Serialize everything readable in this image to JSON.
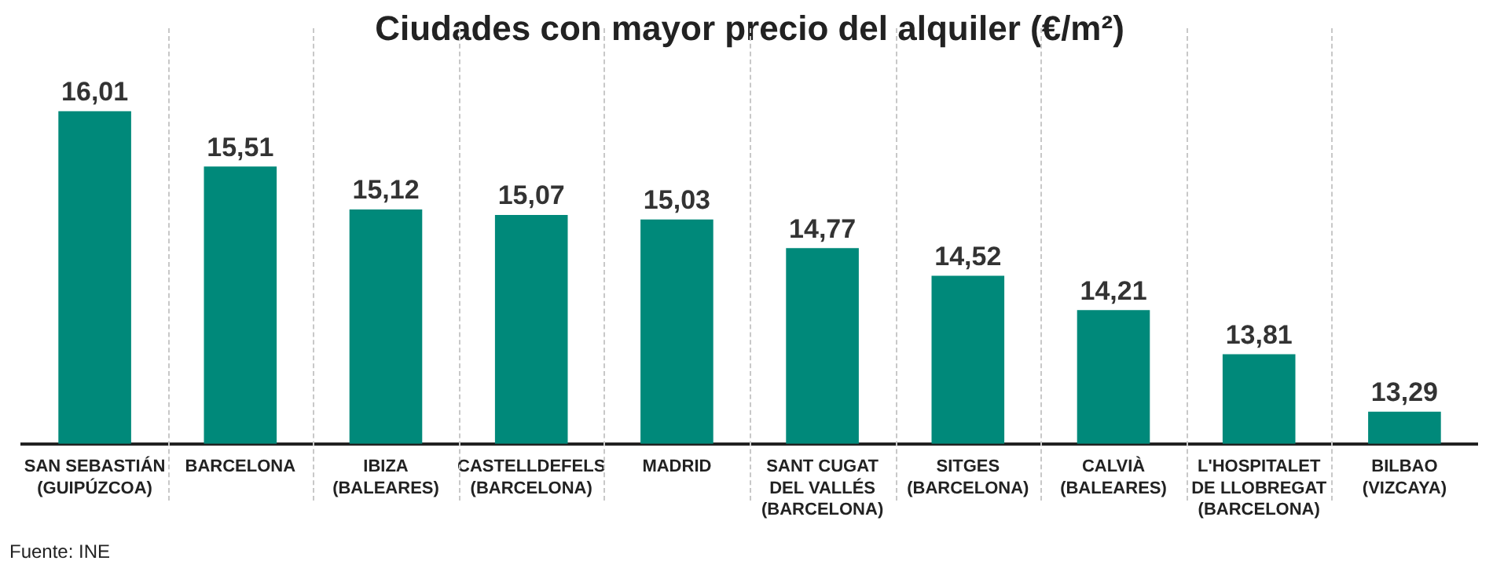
{
  "chart_data": {
    "type": "bar",
    "title": "Ciudades con mayor precio del alquiler (€/m²)",
    "categories": [
      "SAN SEBASTIÁN\n(GUIPÚZCOA)",
      "BARCELONA",
      "IBIZA\n(BALEARES)",
      "CASTELLDEFELS\n(BARCELONA)",
      "MADRID",
      "SANT CUGAT\nDEL VALLÉS\n(BARCELONA)",
      "SITGES\n(BARCELONA)",
      "CALVIÀ\n(BALEARES)",
      "L'HOSPITALET\nDE LLOBREGAT\n(BARCELONA)",
      "BILBAO\n(VIZCAYA)"
    ],
    "values": [
      16.01,
      15.51,
      15.12,
      15.07,
      15.03,
      14.77,
      14.52,
      14.21,
      13.81,
      13.29
    ],
    "color": "#00897a",
    "value_labels": [
      "16,01",
      "15,51",
      "15,12",
      "15,07",
      "15,03",
      "14,77",
      "14,52",
      "14,21",
      "13,81",
      "13,29"
    ],
    "tick_labels": "x",
    "legend": false,
    "annotations": [
      "Fuente: INE"
    ]
  }
}
